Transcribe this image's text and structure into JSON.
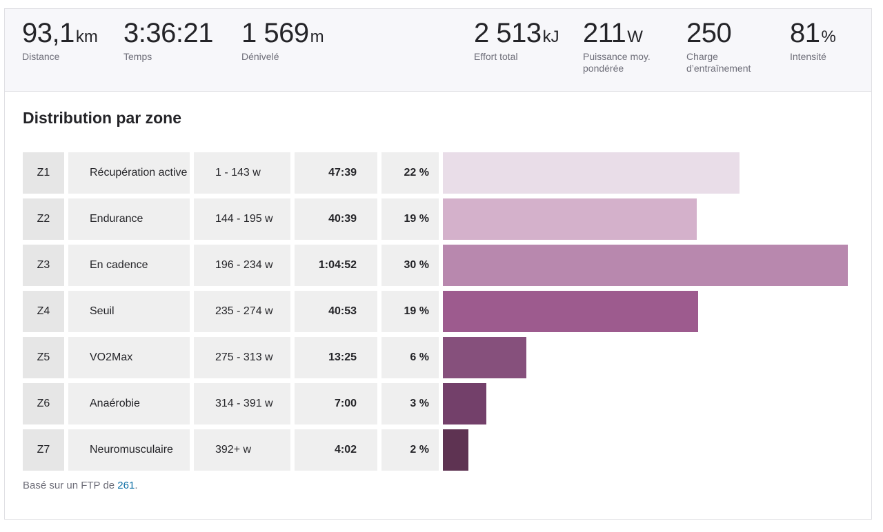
{
  "stats": [
    {
      "value": "93,1",
      "unit": "km",
      "label": "Distance"
    },
    {
      "value": "3:36:21",
      "unit": "",
      "label": "Temps"
    },
    {
      "value": "1 569",
      "unit": "m",
      "label": "Dénivelé"
    },
    {
      "value": "2 513",
      "unit": "kJ",
      "label": "Effort total"
    },
    {
      "value": "211",
      "unit": "W",
      "label": "Puissance moy. pondérée"
    },
    {
      "value": "250",
      "unit": "",
      "label": "Charge d’entraînement"
    },
    {
      "value": "81",
      "unit": "%",
      "label": "Intensité"
    }
  ],
  "zones_title": "Distribution par zone",
  "zones": [
    {
      "id": "Z1",
      "name": "Récupération active",
      "range": "1 - 143 w",
      "time": "47:39",
      "percent": "22 %",
      "share": 0.22,
      "color": "#e9dde8"
    },
    {
      "id": "Z2",
      "name": "Endurance",
      "range": "144 - 195 w",
      "time": "40:39",
      "percent": "19 %",
      "share": 0.188,
      "color": "#d4b1cb"
    },
    {
      "id": "Z3",
      "name": "En cadence",
      "range": "196 - 234 w",
      "time": "1:04:52",
      "percent": "30 %",
      "share": 0.3,
      "color": "#b888ae"
    },
    {
      "id": "Z4",
      "name": "Seuil",
      "range": "235 - 274 w",
      "time": "40:53",
      "percent": "19 %",
      "share": 0.189,
      "color": "#9d5b8e"
    },
    {
      "id": "Z5",
      "name": "VO2Max",
      "range": "275 - 313 w",
      "time": "13:25",
      "percent": "6 %",
      "share": 0.062,
      "color": "#86507c"
    },
    {
      "id": "Z6",
      "name": "Anaérobie",
      "range": "314 - 391 w",
      "time": "7:00",
      "percent": "3 %",
      "share": 0.032,
      "color": "#73406a"
    },
    {
      "id": "Z7",
      "name": "Neuromusculaire",
      "range": "392+ w",
      "time": "4:02",
      "percent": "2 %",
      "share": 0.019,
      "color": "#5e3352"
    }
  ],
  "footnote": {
    "prefix": "Basé sur un FTP de ",
    "ftp": "261",
    "suffix": "."
  }
}
